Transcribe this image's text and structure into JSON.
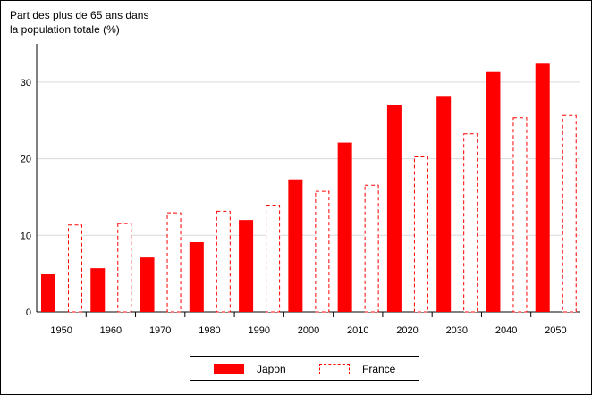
{
  "chart_data": {
    "type": "bar",
    "ylabel_lines": [
      "Part des plus de 65 ans dans",
      "la population totale (%)"
    ],
    "categories": [
      "1950",
      "1960",
      "1970",
      "1980",
      "1990",
      "2000",
      "2010",
      "2020",
      "2030",
      "2040",
      "2050"
    ],
    "series": [
      {
        "name": "Japon",
        "style": "solid",
        "color": "#ff0000",
        "values": [
          4.9,
          5.7,
          7.1,
          9.1,
          12.0,
          17.3,
          22.1,
          27.0,
          28.2,
          31.3,
          32.4
        ]
      },
      {
        "name": "France",
        "style": "dashed",
        "color": "#ff0000",
        "values": [
          11.4,
          11.6,
          13.0,
          13.2,
          14.0,
          15.8,
          16.6,
          20.3,
          23.3,
          25.4,
          25.7
        ]
      }
    ],
    "ylim": [
      0,
      35
    ],
    "yticks": [
      0,
      10,
      20,
      30
    ],
    "grid": true,
    "legend_position": "bottom"
  }
}
